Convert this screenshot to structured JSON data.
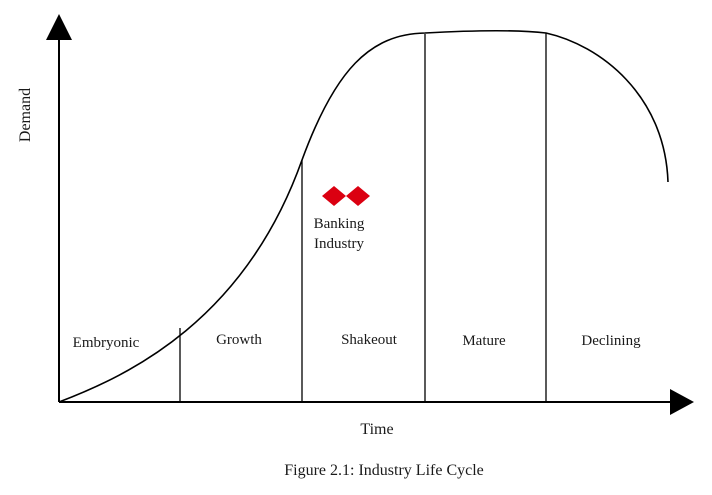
{
  "axes": {
    "y_label": "Demand",
    "x_label": "Time"
  },
  "stages": [
    {
      "label": "Embryonic"
    },
    {
      "label": "Growth"
    },
    {
      "label": "Shakeout"
    },
    {
      "label": "Mature"
    },
    {
      "label": "Declining"
    }
  ],
  "marker": {
    "icon": "hexagon-logo-icon",
    "color": "#db0011",
    "line1": "Banking",
    "line2": "Industry"
  },
  "caption": "Figure 2.1: Industry Life Cycle"
}
